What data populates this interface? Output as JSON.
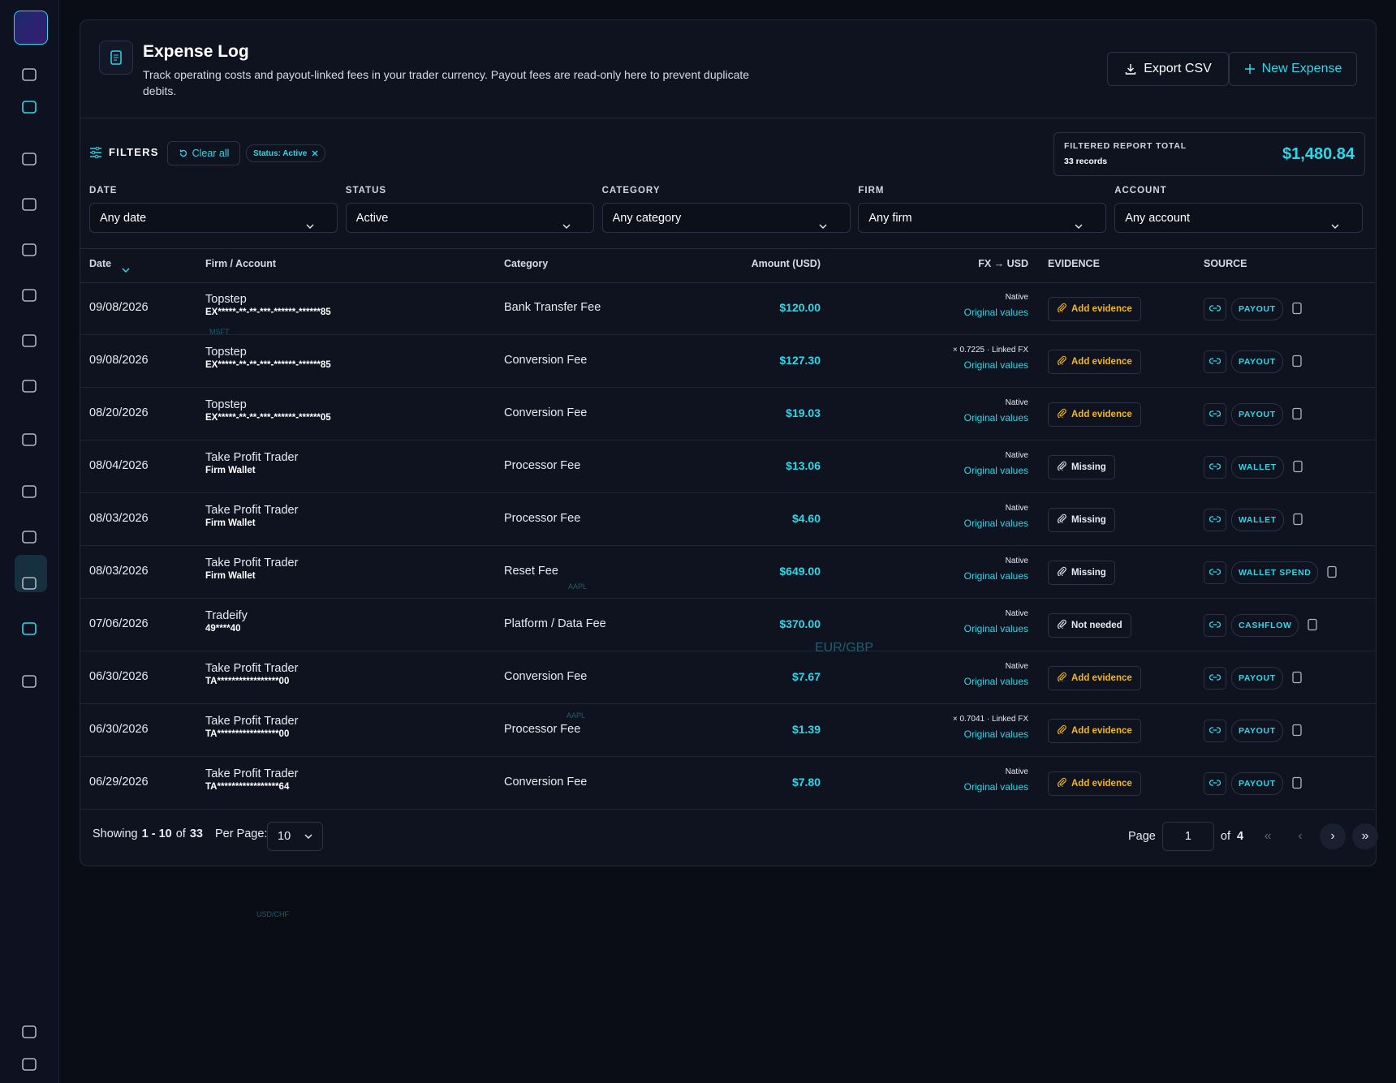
{
  "header": {
    "title": "Expense Log",
    "subtitle": "Track operating costs and payout-linked fees in your trader currency. Payout fees are read-only here to prevent duplicate debits.",
    "export_button": "Export CSV",
    "new_button": "New Expense"
  },
  "filters": {
    "label": "FILTERS",
    "clear_all": "Clear all",
    "chip": "Status: Active",
    "total_label": "FILTERED REPORT TOTAL",
    "total_records": "33 records",
    "total_value": "$1,480.84",
    "fields": [
      {
        "label": "DATE",
        "value": "Any date"
      },
      {
        "label": "STATUS",
        "value": "Active"
      },
      {
        "label": "CATEGORY",
        "value": "Any category"
      },
      {
        "label": "FIRM",
        "value": "Any firm"
      },
      {
        "label": "ACCOUNT",
        "value": "Any account"
      }
    ]
  },
  "table": {
    "columns": [
      "Date",
      "Firm / Account",
      "Category",
      "Amount (USD)",
      "FX → USD",
      "EVIDENCE",
      "SOURCE"
    ],
    "rows": [
      {
        "date": "09/08/2026",
        "firm": "Topstep",
        "account": "EX*****-**-**-***-******-******85",
        "category": "Bank Transfer Fee",
        "amount": "$120.00",
        "fx": "Native",
        "fx_link": "Original values",
        "evidence": "Add evidence",
        "evidence_color": "#f5b81c",
        "source": "PAYOUT"
      },
      {
        "date": "09/08/2026",
        "firm": "Topstep",
        "account": "EX*****-**-**-***-******-******85",
        "category": "Conversion Fee",
        "amount": "$127.30",
        "fx": "× 0.7225 · Linked FX",
        "fx_link": "Original values",
        "evidence": "Add evidence",
        "evidence_color": "#f5b81c",
        "source": "PAYOUT"
      },
      {
        "date": "08/20/2026",
        "firm": "Topstep",
        "account": "EX*****-**-**-***-******-******05",
        "category": "Conversion Fee",
        "amount": "$19.03",
        "fx": "Native",
        "fx_link": "Original values",
        "evidence": "Add evidence",
        "evidence_color": "#f5b81c",
        "source": "PAYOUT"
      },
      {
        "date": "08/04/2026",
        "firm": "Take Profit Trader",
        "account": "Firm Wallet",
        "category": "Processor Fee",
        "amount": "$13.06",
        "fx": "Native",
        "fx_link": "Original values",
        "evidence": "Missing",
        "evidence_color": "#e6ebf2",
        "source": "WALLET"
      },
      {
        "date": "08/03/2026",
        "firm": "Take Profit Trader",
        "account": "Firm Wallet",
        "category": "Processor Fee",
        "amount": "$4.60",
        "fx": "Native",
        "fx_link": "Original values",
        "evidence": "Missing",
        "evidence_color": "#e6ebf2",
        "source": "WALLET"
      },
      {
        "date": "08/03/2026",
        "firm": "Take Profit Trader",
        "account": "Firm Wallet",
        "category": "Reset Fee",
        "amount": "$649.00",
        "fx": "Native",
        "fx_link": "Original values",
        "evidence": "Missing",
        "evidence_color": "#e6ebf2",
        "source": "WALLET SPEND"
      },
      {
        "date": "07/06/2026",
        "firm": "Tradeify",
        "account": "49****40",
        "category": "Platform / Data Fee",
        "amount": "$370.00",
        "fx": "Native",
        "fx_link": "Original values",
        "evidence": "Not needed",
        "evidence_color": "#e6ebf2",
        "source": "CASHFLOW"
      },
      {
        "date": "06/30/2026",
        "firm": "Take Profit Trader",
        "account": "TA*****************00",
        "category": "Conversion Fee",
        "amount": "$7.67",
        "fx": "Native",
        "fx_link": "Original values",
        "evidence": "Add evidence",
        "evidence_color": "#f5b81c",
        "source": "PAYOUT"
      },
      {
        "date": "06/30/2026",
        "firm": "Take Profit Trader",
        "account": "TA*****************00",
        "category": "Processor Fee",
        "amount": "$1.39",
        "fx": "× 0.7041 · Linked FX",
        "fx_link": "Original values",
        "evidence": "Add evidence",
        "evidence_color": "#f5b81c",
        "source": "PAYOUT"
      },
      {
        "date": "06/29/2026",
        "firm": "Take Profit Trader",
        "account": "TA*****************64",
        "category": "Conversion Fee",
        "amount": "$7.80",
        "fx": "Native",
        "fx_link": "Original values",
        "evidence": "Add evidence",
        "evidence_color": "#f5b81c",
        "source": "PAYOUT"
      }
    ]
  },
  "footer": {
    "showing": "Showing",
    "range": "1 - 10",
    "of": "of",
    "total": "33",
    "per_page_label": "Per Page:",
    "per_page": "10",
    "page_label": "Page",
    "page": "1",
    "page_of": "of",
    "pages": "4"
  },
  "background_tickers": [
    "EUR/GBP",
    "AAPL",
    "AAPL",
    "USD/CHF",
    "MSFT"
  ]
}
